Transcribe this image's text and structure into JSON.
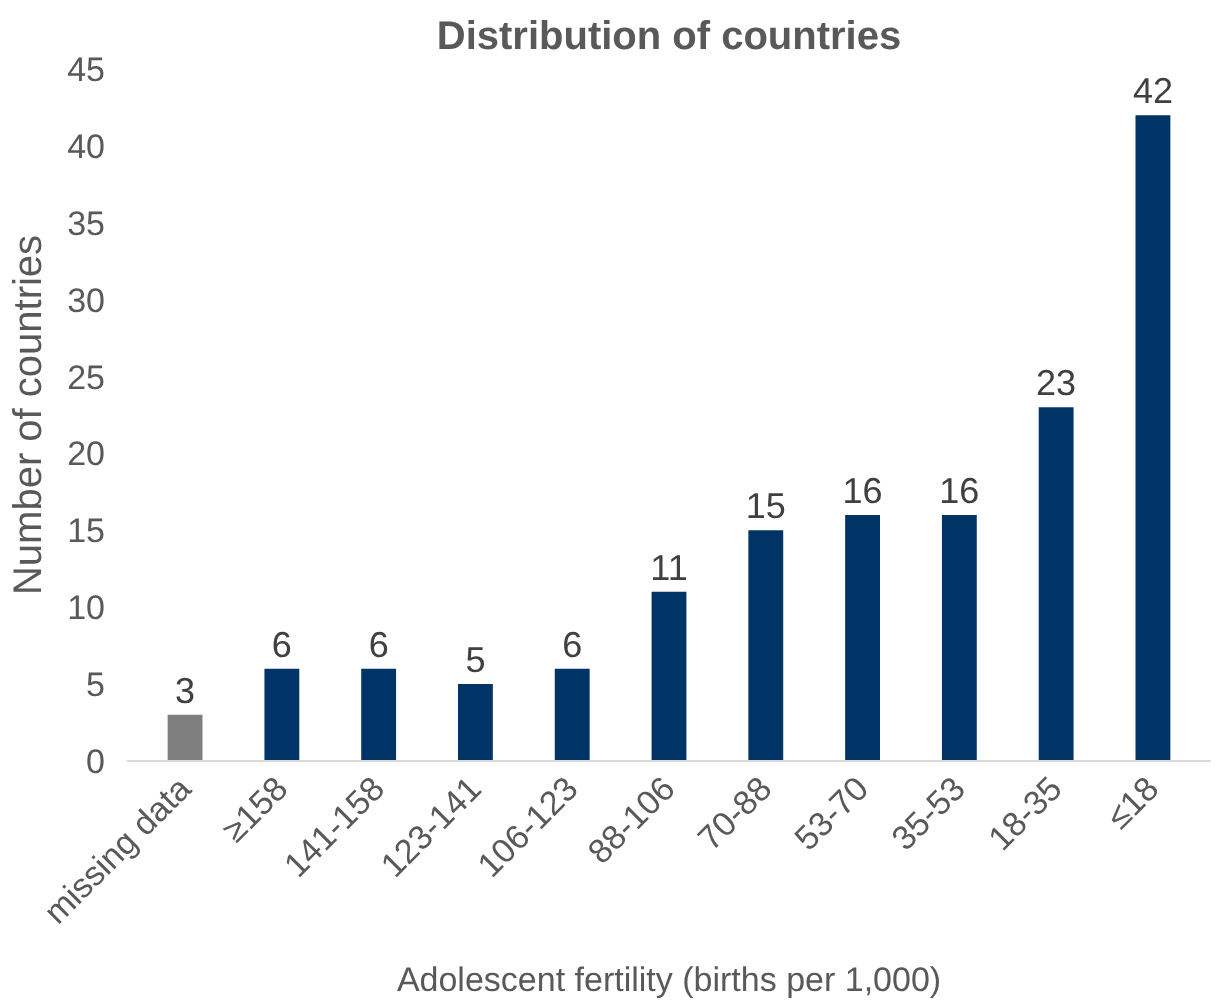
{
  "chart_data": {
    "type": "bar",
    "title": "Distribution of countries",
    "xlabel": "Adolescent fertility (births per 1,000)",
    "ylabel": "Number of countries",
    "categories": [
      "missing data",
      "≥158",
      "141-158",
      "123-141",
      "106-123",
      "88-106",
      "70-88",
      "53-70",
      "35-53",
      "18-35",
      "≤18"
    ],
    "values": [
      3,
      6,
      6,
      5,
      6,
      11,
      15,
      16,
      16,
      23,
      42
    ],
    "colors": [
      "#7f7f7f",
      "#003366",
      "#003366",
      "#003366",
      "#003366",
      "#003366",
      "#003366",
      "#003366",
      "#003366",
      "#003366",
      "#003366"
    ],
    "ylim": [
      0,
      45
    ],
    "yticks": [
      0,
      5,
      10,
      15,
      20,
      25,
      30,
      35,
      40,
      45
    ],
    "data_labels": true,
    "grid": false
  }
}
